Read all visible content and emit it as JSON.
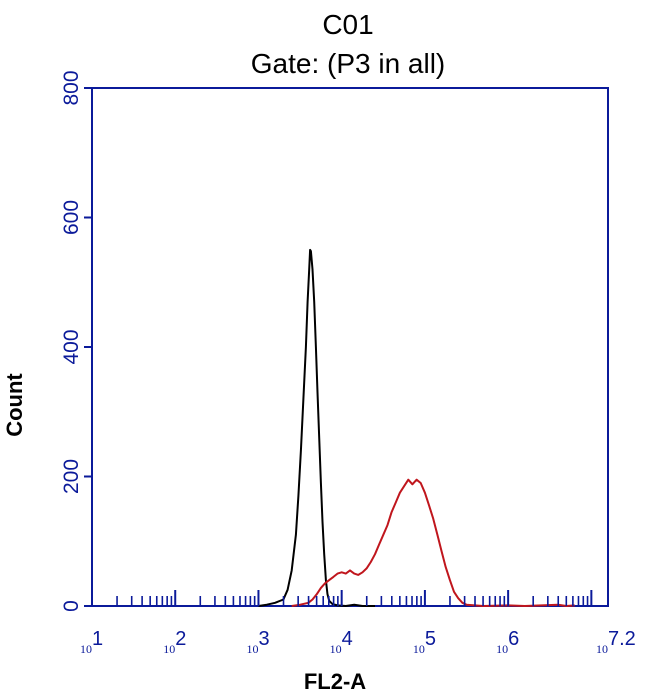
{
  "chart_data": {
    "type": "line",
    "title": "C01",
    "subtitle": "Gate: (P3 in all)",
    "xlabel": "FL2-A",
    "ylabel": "Count",
    "x_scale": "log10",
    "xlim": [
      10,
      15848931.92
    ],
    "ylim": [
      0,
      800
    ],
    "y_ticks": [
      "0",
      "200",
      "400",
      "600",
      "800"
    ],
    "x_ticks": [
      {
        "value": 10,
        "base": "10",
        "exp": "1"
      },
      {
        "value": 100,
        "base": "10",
        "exp": "2"
      },
      {
        "value": 1000,
        "base": "10",
        "exp": "3"
      },
      {
        "value": 10000,
        "base": "10",
        "exp": "4"
      },
      {
        "value": 100000,
        "base": "10",
        "exp": "5"
      },
      {
        "value": 1000000,
        "base": "10",
        "exp": "6"
      },
      {
        "value": 15848931.92,
        "base": "10",
        "exp": "7.2"
      }
    ],
    "grid": false,
    "legend": "none",
    "series": [
      {
        "color": "#000000",
        "points": [
          [
            1000,
            0
          ],
          [
            1260,
            2
          ],
          [
            1585,
            5
          ],
          [
            1995,
            10
          ],
          [
            2240,
            25
          ],
          [
            2512,
            55
          ],
          [
            2818,
            110
          ],
          [
            3020,
            170
          ],
          [
            3236,
            240
          ],
          [
            3467,
            320
          ],
          [
            3715,
            400
          ],
          [
            3890,
            470
          ],
          [
            4074,
            520
          ],
          [
            4169,
            550
          ],
          [
            4266,
            548
          ],
          [
            4467,
            520
          ],
          [
            4677,
            470
          ],
          [
            4898,
            400
          ],
          [
            5129,
            330
          ],
          [
            5370,
            260
          ],
          [
            5623,
            190
          ],
          [
            5888,
            130
          ],
          [
            6166,
            80
          ],
          [
            6457,
            40
          ],
          [
            6761,
            18
          ],
          [
            7079,
            8
          ],
          [
            7762,
            3
          ],
          [
            8913,
            1
          ],
          [
            11220,
            0
          ],
          [
            14125,
            2
          ],
          [
            17783,
            0
          ],
          [
            25119,
            0
          ]
        ]
      },
      {
        "color": "#c0161d",
        "points": [
          [
            2512,
            0
          ],
          [
            3162,
            2
          ],
          [
            3981,
            5
          ],
          [
            4467,
            10
          ],
          [
            5012,
            18
          ],
          [
            5623,
            28
          ],
          [
            6310,
            35
          ],
          [
            7079,
            40
          ],
          [
            7943,
            45
          ],
          [
            8913,
            50
          ],
          [
            10000,
            52
          ],
          [
            11220,
            50
          ],
          [
            12589,
            55
          ],
          [
            14125,
            50
          ],
          [
            15849,
            48
          ],
          [
            17783,
            52
          ],
          [
            19953,
            58
          ],
          [
            22387,
            68
          ],
          [
            25119,
            80
          ],
          [
            28184,
            95
          ],
          [
            31623,
            110
          ],
          [
            35481,
            125
          ],
          [
            39811,
            145
          ],
          [
            44668,
            160
          ],
          [
            50119,
            175
          ],
          [
            56234,
            185
          ],
          [
            63096,
            195
          ],
          [
            70795,
            188
          ],
          [
            79433,
            195
          ],
          [
            89125,
            190
          ],
          [
            100000,
            175
          ],
          [
            112202,
            155
          ],
          [
            125893,
            135
          ],
          [
            141254,
            110
          ],
          [
            158489,
            85
          ],
          [
            177828,
            60
          ],
          [
            199526,
            40
          ],
          [
            223872,
            22
          ],
          [
            251189,
            12
          ],
          [
            281838,
            5
          ],
          [
            316228,
            2
          ],
          [
            398107,
            1
          ],
          [
            501187,
            0
          ],
          [
            1000000,
            1
          ],
          [
            1584893,
            0
          ],
          [
            3981072,
            2
          ],
          [
            5011872,
            0
          ],
          [
            6309573,
            1
          ]
        ]
      }
    ]
  }
}
